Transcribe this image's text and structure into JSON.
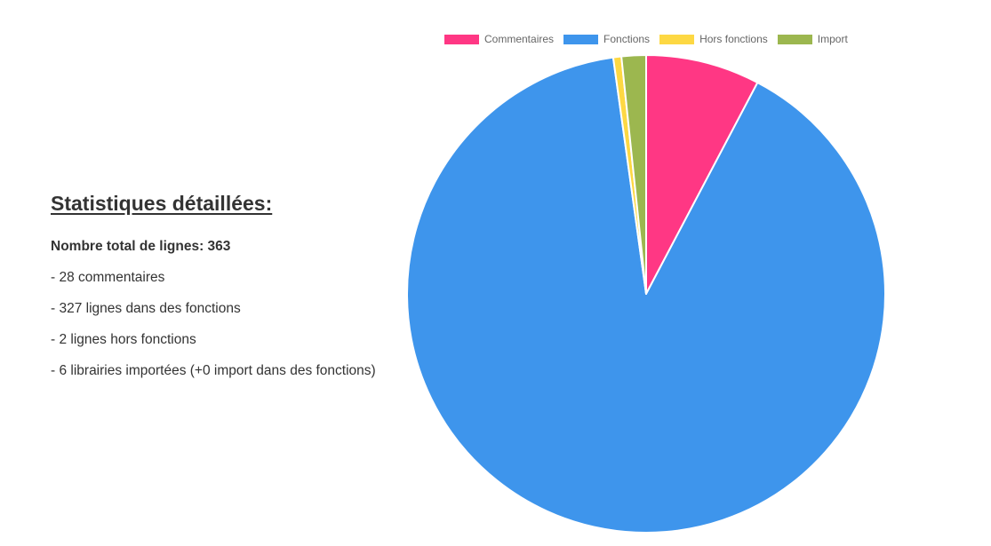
{
  "stats": {
    "title": "Statistiques détaillées:",
    "total": "Nombre total de lignes: 363",
    "lines": [
      "- 28 commentaires",
      "- 327 lignes dans des fonctions",
      "- 2 lignes hors fonctions",
      "- 6 librairies importées (+0 import dans des fonctions)"
    ]
  },
  "chart_data": {
    "type": "pie",
    "categories": [
      "Commentaires",
      "Fonctions",
      "Hors fonctions",
      "Import"
    ],
    "values": [
      28,
      327,
      2,
      6
    ],
    "colors": [
      "#ff3784",
      "#3e95ec",
      "#fdd843",
      "#9cb74f"
    ],
    "legend_position": "top"
  }
}
